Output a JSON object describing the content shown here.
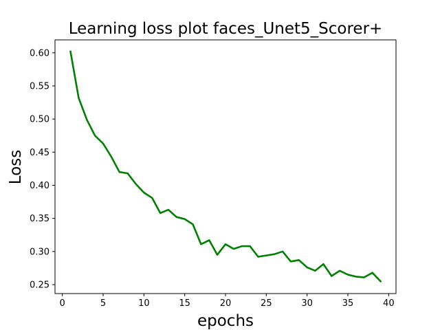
{
  "chart_data": {
    "type": "line",
    "title": "Learning loss plot faces_Unet5_Scorer+",
    "xlabel": "epochs",
    "ylabel": "Loss",
    "xlim": [
      -0.9,
      40.9
    ],
    "ylim": [
      0.2365,
      0.6195
    ],
    "x_ticks": [
      0,
      5,
      10,
      15,
      20,
      25,
      30,
      35,
      40
    ],
    "y_ticks": [
      0.25,
      0.3,
      0.35,
      0.4,
      0.45,
      0.5,
      0.55,
      0.6
    ],
    "x_tick_labels": [
      "0",
      "5",
      "10",
      "15",
      "20",
      "25",
      "30",
      "35",
      "40"
    ],
    "y_tick_labels": [
      "0.25",
      "0.30",
      "0.35",
      "0.40",
      "0.45",
      "0.50",
      "0.55",
      "0.60"
    ],
    "grid": false,
    "series": [
      {
        "color": "#008000",
        "x": [
          1,
          2,
          3,
          4,
          5,
          6,
          7,
          8,
          9,
          10,
          11,
          12,
          13,
          14,
          15,
          16,
          17,
          18,
          19,
          20,
          21,
          22,
          23,
          24,
          25,
          26,
          27,
          28,
          29,
          30,
          31,
          32,
          33,
          34,
          35,
          36,
          37,
          38,
          39
        ],
        "values": [
          0.602,
          0.532,
          0.499,
          0.475,
          0.463,
          0.443,
          0.42,
          0.418,
          0.402,
          0.389,
          0.381,
          0.358,
          0.363,
          0.352,
          0.349,
          0.341,
          0.311,
          0.317,
          0.295,
          0.311,
          0.304,
          0.308,
          0.308,
          0.292,
          0.294,
          0.296,
          0.3,
          0.285,
          0.287,
          0.276,
          0.271,
          0.281,
          0.263,
          0.271,
          0.265,
          0.262,
          0.261,
          0.268,
          0.255
        ]
      }
    ]
  }
}
